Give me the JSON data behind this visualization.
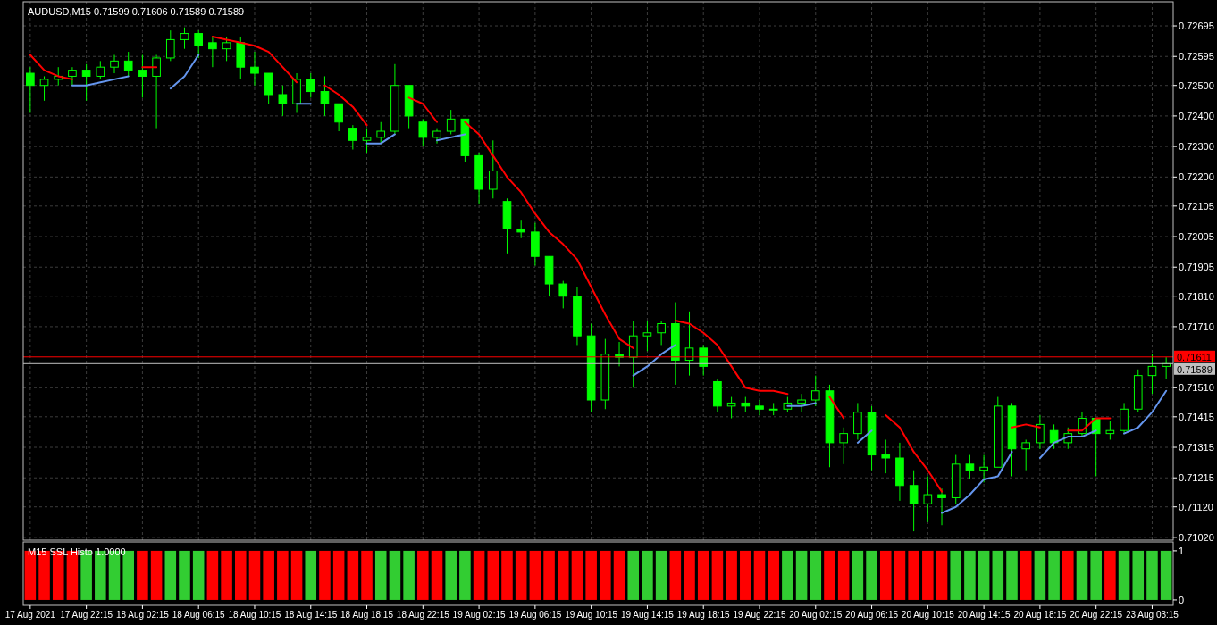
{
  "chart_data": [
    {
      "type": "candlestick",
      "title": "AUDUSD,M15  0.71599 0.71606 0.71589 0.71589",
      "color": "#00ff00",
      "categories": [
        null,
        null,
        null,
        null,
        null,
        null,
        null,
        null,
        null,
        null,
        null,
        null,
        null,
        null,
        null,
        null,
        null,
        null,
        null,
        null,
        null,
        null,
        null,
        null,
        null,
        null,
        null,
        null,
        null,
        null,
        null,
        null,
        null,
        null,
        null,
        null,
        null,
        null,
        null,
        null,
        null,
        null,
        null,
        null,
        null,
        null,
        null,
        null,
        null,
        null,
        null,
        null,
        null,
        null,
        null,
        null,
        null,
        null,
        null,
        null,
        null,
        null,
        null,
        null,
        null,
        null,
        null,
        null,
        null,
        null,
        null,
        null,
        null,
        null,
        null,
        null,
        null,
        null,
        null,
        null,
        null,
        null
      ],
      "ohlc": [
        [
          0.7254,
          0.7256,
          0.7241,
          0.725
        ],
        [
          0.725,
          0.7253,
          0.7245,
          0.7252
        ],
        [
          0.7252,
          0.7256,
          0.725,
          0.7253
        ],
        [
          0.7253,
          0.7256,
          0.725,
          0.7255
        ],
        [
          0.7255,
          0.7257,
          0.7245,
          0.7253
        ],
        [
          0.7253,
          0.7258,
          0.7252,
          0.7256
        ],
        [
          0.7256,
          0.726,
          0.7254,
          0.7258
        ],
        [
          0.7258,
          0.7261,
          0.7253,
          0.7255
        ],
        [
          0.7255,
          0.726,
          0.7246,
          0.7253
        ],
        [
          0.7253,
          0.726,
          0.7236,
          0.7259
        ],
        [
          0.7259,
          0.7268,
          0.7258,
          0.7265
        ],
        [
          0.7265,
          0.7269,
          0.7262,
          0.7267
        ],
        [
          0.7267,
          0.7268,
          0.7259,
          0.7263
        ],
        [
          0.7264,
          0.7266,
          0.7256,
          0.7262
        ],
        [
          0.7262,
          0.7266,
          0.7258,
          0.7264
        ],
        [
          0.7264,
          0.7266,
          0.7252,
          0.7256
        ],
        [
          0.7256,
          0.7261,
          0.725,
          0.7254
        ],
        [
          0.7254,
          0.7254,
          0.7244,
          0.7247
        ],
        [
          0.7247,
          0.725,
          0.724,
          0.7244
        ],
        [
          0.7244,
          0.7254,
          0.7241,
          0.7252
        ],
        [
          0.7252,
          0.7254,
          0.7246,
          0.7248
        ],
        [
          0.7248,
          0.7253,
          0.724,
          0.7244
        ],
        [
          0.7244,
          0.7244,
          0.7235,
          0.7238
        ],
        [
          0.7236,
          0.7237,
          0.7229,
          0.7232
        ],
        [
          0.7232,
          0.7236,
          0.7228,
          0.7233
        ],
        [
          0.7233,
          0.7238,
          0.7231,
          0.7235
        ],
        [
          0.7235,
          0.7257,
          0.7234,
          0.725
        ],
        [
          0.725,
          0.725,
          0.7236,
          0.724
        ],
        [
          0.7238,
          0.7239,
          0.723,
          0.7233
        ],
        [
          0.7233,
          0.7236,
          0.7231,
          0.7235
        ],
        [
          0.7235,
          0.7242,
          0.7234,
          0.7239
        ],
        [
          0.7239,
          0.7239,
          0.7225,
          0.7227
        ],
        [
          0.7227,
          0.7228,
          0.7211,
          0.7216
        ],
        [
          0.7216,
          0.7232,
          0.7213,
          0.7222
        ],
        [
          0.7212,
          0.7213,
          0.7195,
          0.7203
        ],
        [
          0.7203,
          0.7206,
          0.72,
          0.7202
        ],
        [
          0.7202,
          0.7205,
          0.7191,
          0.7194
        ],
        [
          0.7194,
          0.7194,
          0.7181,
          0.7185
        ],
        [
          0.7185,
          0.7186,
          0.7177,
          0.7181
        ],
        [
          0.7181,
          0.7184,
          0.7165,
          0.7168
        ],
        [
          0.7168,
          0.7172,
          0.7143,
          0.7147
        ],
        [
          0.7147,
          0.7167,
          0.7144,
          0.7162
        ],
        [
          0.7162,
          0.7166,
          0.7158,
          0.7161
        ],
        [
          0.7161,
          0.7173,
          0.7151,
          0.7168
        ],
        [
          0.7168,
          0.7173,
          0.7163,
          0.7169
        ],
        [
          0.7169,
          0.7173,
          0.7165,
          0.7172
        ],
        [
          0.7172,
          0.7179,
          0.7152,
          0.716
        ],
        [
          0.716,
          0.7176,
          0.7155,
          0.7164
        ],
        [
          0.7164,
          0.7165,
          0.7155,
          0.7158
        ],
        [
          0.7153,
          0.7154,
          0.7143,
          0.7145
        ],
        [
          0.7145,
          0.7148,
          0.7141,
          0.7146
        ],
        [
          0.7146,
          0.7148,
          0.7143,
          0.7145
        ],
        [
          0.7145,
          0.7147,
          0.7142,
          0.7144
        ],
        [
          0.7144,
          0.7146,
          0.7142,
          0.7144
        ],
        [
          0.7144,
          0.7148,
          0.7143,
          0.7146
        ],
        [
          0.7146,
          0.7149,
          0.7143,
          0.7147
        ],
        [
          0.7147,
          0.7155,
          0.7145,
          0.715
        ],
        [
          0.715,
          0.7152,
          0.7125,
          0.7133
        ],
        [
          0.7133,
          0.7138,
          0.7126,
          0.7136
        ],
        [
          0.7136,
          0.7146,
          0.7134,
          0.7143
        ],
        [
          0.7143,
          0.7145,
          0.7124,
          0.7129
        ],
        [
          0.7129,
          0.7134,
          0.7123,
          0.7128
        ],
        [
          0.7128,
          0.7133,
          0.7114,
          0.7119
        ],
        [
          0.7119,
          0.7124,
          0.7104,
          0.7113
        ],
        [
          0.7113,
          0.7122,
          0.7107,
          0.7116
        ],
        [
          0.7116,
          0.7118,
          0.7106,
          0.7115
        ],
        [
          0.7115,
          0.7129,
          0.7113,
          0.7126
        ],
        [
          0.7126,
          0.7129,
          0.7121,
          0.7124
        ],
        [
          0.7124,
          0.7129,
          0.712,
          0.7125
        ],
        [
          0.7125,
          0.7148,
          0.7125,
          0.7145
        ],
        [
          0.7145,
          0.7146,
          0.7122,
          0.7131
        ],
        [
          0.7131,
          0.7134,
          0.7124,
          0.7133
        ],
        [
          0.7133,
          0.7142,
          0.7131,
          0.7139
        ],
        [
          0.7137,
          0.7139,
          0.7131,
          0.7133
        ],
        [
          0.7133,
          0.7138,
          0.7131,
          0.7136
        ],
        [
          0.7136,
          0.7143,
          0.7135,
          0.7141
        ],
        [
          0.7141,
          0.7141,
          0.7122,
          0.7136
        ],
        [
          0.7136,
          0.714,
          0.7134,
          0.7137
        ],
        [
          0.7137,
          0.7146,
          0.7136,
          0.7144
        ],
        [
          0.7144,
          0.7157,
          0.7143,
          0.7155
        ],
        [
          0.7155,
          0.7162,
          0.7149,
          0.7158
        ],
        [
          0.7158,
          0.7161,
          0.7154,
          0.71589
        ]
      ],
      "series": [
        {
          "type": "line",
          "color": "#ff0000",
          "values": [
            0.726,
            0.7255,
            0.7253,
            0.7252,
            null,
            null,
            null,
            null,
            0.7256,
            0.7256,
            null,
            null,
            null,
            0.7266,
            0.7265,
            0.7264,
            0.7263,
            0.7261,
            0.7256,
            0.7251,
            null,
            0.725,
            0.7247,
            0.7243,
            0.7237,
            null,
            null,
            0.7246,
            0.7244,
            0.7238,
            null,
            0.7238,
            0.7234,
            0.7227,
            0.722,
            0.7215,
            0.7208,
            0.7202,
            0.7198,
            0.7193,
            0.7184,
            0.7175,
            0.7167,
            0.7164,
            null,
            null,
            0.7173,
            0.7172,
            0.7169,
            0.7165,
            0.7158,
            0.7151,
            0.715,
            0.715,
            0.7149,
            null,
            null,
            0.7148,
            0.7141,
            null,
            null,
            0.7142,
            0.7138,
            0.713,
            0.7124,
            0.7117,
            null,
            null,
            null,
            null,
            0.7138,
            0.7139,
            0.7138,
            null,
            0.7137,
            0.7137,
            0.7141,
            0.7141,
            null,
            null,
            null,
            null
          ]
        },
        {
          "type": "line",
          "color": "#6495ed",
          "values": [
            null,
            null,
            null,
            0.725,
            0.725,
            0.7251,
            0.7252,
            0.7253,
            null,
            null,
            0.7249,
            0.7253,
            0.726,
            null,
            null,
            null,
            null,
            null,
            null,
            0.7244,
            0.7244,
            null,
            null,
            null,
            0.7231,
            0.7231,
            0.7234,
            null,
            null,
            0.7232,
            0.7233,
            0.7234,
            null,
            null,
            null,
            null,
            null,
            null,
            null,
            null,
            null,
            null,
            null,
            0.7155,
            0.7158,
            0.7162,
            0.7165,
            null,
            null,
            null,
            null,
            null,
            null,
            null,
            0.7145,
            0.7145,
            0.7146,
            null,
            null,
            0.7133,
            0.7137,
            null,
            null,
            null,
            null,
            0.711,
            0.7112,
            0.7116,
            0.7121,
            0.7122,
            0.713,
            null,
            0.7128,
            0.7133,
            0.7135,
            0.7135,
            0.7137,
            null,
            0.7136,
            0.7138,
            0.7143,
            0.715
          ]
        }
      ],
      "ylim": [
        0.71011,
        0.72774
      ],
      "yticks": [
        0.72695,
        0.72595,
        {
          "value": 0.725,
          "label": "0.72500"
        },
        {
          "value": 0.724,
          "label": "0.72400"
        },
        {
          "value": 0.723,
          "label": "0.72300"
        },
        {
          "value": 0.722,
          "label": "0.72200"
        },
        0.72105,
        0.72005,
        0.71905,
        {
          "value": 0.7181,
          "label": "0.71810"
        },
        {
          "value": 0.7171,
          "label": "0.71710"
        },
        {
          "value": 0.7151,
          "label": "0.71510"
        },
        0.71415,
        0.71315,
        0.71215,
        {
          "value": 0.7112,
          "label": "0.71120"
        },
        {
          "value": 0.7102,
          "label": "0.71020"
        }
      ],
      "ref_lines": [
        {
          "axis": "y",
          "value": 0.71611,
          "label": "0.71611",
          "color": "#ff0000"
        },
        {
          "axis": "y",
          "value": 0.71589,
          "label": "0.71589",
          "color": "#c0c0c0"
        }
      ],
      "grid": true,
      "tick_labels": "y"
    },
    {
      "type": "bar",
      "title": "M15 SSL Histo  1.0000",
      "categories": [
        "17 Aug 2021",
        null,
        null,
        null,
        "17 Aug 22:15",
        null,
        null,
        null,
        "18 Aug 02:15",
        null,
        null,
        null,
        "18 Aug 06:15",
        null,
        null,
        null,
        "18 Aug 10:15",
        null,
        null,
        null,
        "18 Aug 14:15",
        null,
        null,
        null,
        "18 Aug 18:15",
        null,
        null,
        null,
        "18 Aug 22:15",
        null,
        null,
        null,
        "19 Aug 02:15",
        null,
        null,
        null,
        "19 Aug 06:15",
        null,
        null,
        null,
        "19 Aug 10:15",
        null,
        null,
        null,
        "19 Aug 14:15",
        null,
        null,
        null,
        "19 Aug 18:15",
        null,
        null,
        null,
        "19 Aug 22:15",
        null,
        null,
        null,
        "20 Aug 02:15",
        null,
        null,
        null,
        "20 Aug 06:15",
        null,
        null,
        null,
        "20 Aug 10:15",
        null,
        null,
        null,
        "20 Aug 14:15",
        null,
        null,
        null,
        "20 Aug 18:15",
        null,
        null,
        null,
        "20 Aug 22:15",
        null,
        null,
        null,
        "23 Aug 03:15",
        null
      ],
      "values": [
        1,
        1,
        1,
        1,
        1,
        1,
        1,
        1,
        1,
        1,
        1,
        1,
        1,
        1,
        1,
        1,
        1,
        1,
        1,
        1,
        1,
        1,
        1,
        1,
        1,
        1,
        1,
        1,
        1,
        1,
        1,
        1,
        1,
        1,
        1,
        1,
        1,
        1,
        1,
        1,
        1,
        1,
        1,
        1,
        1,
        1,
        1,
        1,
        1,
        1,
        1,
        1,
        1,
        1,
        1,
        1,
        1,
        1,
        1,
        1,
        1,
        1,
        1,
        1,
        1,
        1,
        1,
        1,
        1,
        1,
        1,
        1,
        1,
        1,
        1,
        1,
        1,
        1,
        1,
        1,
        1,
        1
      ],
      "colors": [
        "#ff0000",
        "#ff0000",
        "#ff0000",
        "#ff0000",
        "#32cd32",
        "#32cd32",
        "#32cd32",
        "#32cd32",
        "#ff0000",
        "#ff0000",
        "#32cd32",
        "#32cd32",
        "#32cd32",
        "#ff0000",
        "#ff0000",
        "#ff0000",
        "#ff0000",
        "#ff0000",
        "#ff0000",
        "#ff0000",
        "#32cd32",
        "#ff0000",
        "#ff0000",
        "#ff0000",
        "#ff0000",
        "#32cd32",
        "#32cd32",
        "#32cd32",
        "#ff0000",
        "#ff0000",
        "#32cd32",
        "#32cd32",
        "#ff0000",
        "#ff0000",
        "#ff0000",
        "#ff0000",
        "#ff0000",
        "#ff0000",
        "#ff0000",
        "#ff0000",
        "#ff0000",
        "#ff0000",
        "#ff0000",
        "#32cd32",
        "#32cd32",
        "#32cd32",
        "#ff0000",
        "#ff0000",
        "#ff0000",
        "#ff0000",
        "#ff0000",
        "#ff0000",
        "#ff0000",
        "#ff0000",
        "#32cd32",
        "#32cd32",
        "#32cd32",
        "#ff0000",
        "#ff0000",
        "#32cd32",
        "#32cd32",
        "#ff0000",
        "#ff0000",
        "#ff0000",
        "#ff0000",
        "#ff0000",
        "#32cd32",
        "#32cd32",
        "#32cd32",
        "#32cd32",
        "#32cd32",
        "#ff0000",
        "#32cd32",
        "#32cd32",
        "#ff0000",
        "#32cd32",
        "#32cd32",
        "#ff0000",
        "#32cd32",
        "#32cd32",
        "#32cd32",
        "#32cd32"
      ],
      "ylim": [
        -0.11,
        1.18
      ],
      "yticks": [
        0,
        1
      ]
    }
  ]
}
